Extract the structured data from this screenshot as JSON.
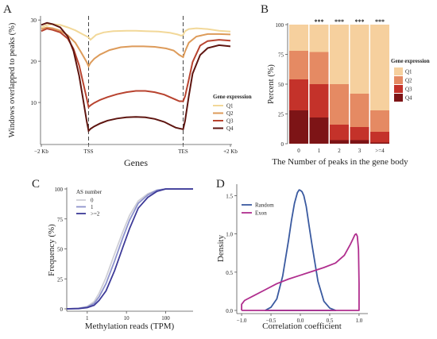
{
  "figure": {
    "panels": [
      {
        "letter": "A"
      },
      {
        "letter": "B"
      },
      {
        "letter": "C"
      },
      {
        "letter": "D"
      }
    ]
  },
  "chart_data": [
    {
      "panel": "A",
      "type": "line",
      "xlabel": "Genes",
      "ylabel": "Windows overlapped to peaks (%)",
      "x_tick_labels": [
        "−2 Kb",
        "TSS",
        "TES",
        "+2 Kb"
      ],
      "y_ticks": [
        10,
        20,
        30
      ],
      "ylim": [
        0,
        31
      ],
      "xlim": [
        0,
        100
      ],
      "dashed_lines_at": [
        25,
        75
      ],
      "legend_title": "Gene expression",
      "legend_position": "right",
      "series": [
        {
          "name": "Q1",
          "color": "#f2d899",
          "x": [
            0,
            3,
            6,
            10,
            14,
            18,
            22,
            25,
            26,
            27,
            29,
            33,
            38,
            45,
            50,
            55,
            62,
            68,
            72,
            74,
            75,
            76,
            78,
            82,
            88,
            94,
            100
          ],
          "y": [
            28.2,
            28.8,
            29.0,
            28.8,
            28.2,
            27.5,
            26.5,
            25.8,
            25.2,
            25.6,
            26.4,
            27.0,
            27.3,
            27.4,
            27.4,
            27.3,
            27.2,
            26.9,
            26.5,
            26.2,
            26.4,
            27.3,
            27.8,
            28.0,
            27.8,
            27.4,
            27.2
          ]
        },
        {
          "name": "Q2",
          "color": "#dd9b5a",
          "x": [
            0,
            3,
            6,
            10,
            14,
            18,
            21,
            24,
            25,
            26,
            28,
            31,
            36,
            42,
            48,
            54,
            60,
            66,
            70,
            73,
            75,
            76,
            78,
            82,
            88,
            94,
            100
          ],
          "y": [
            27.8,
            28.2,
            28.0,
            27.4,
            26.3,
            24.5,
            22.2,
            19.8,
            18.8,
            19.6,
            20.6,
            21.6,
            22.7,
            23.4,
            23.6,
            23.6,
            23.5,
            23.1,
            22.6,
            21.5,
            21.0,
            22.4,
            24.5,
            26.0,
            26.6,
            26.6,
            26.5
          ]
        },
        {
          "name": "Q3",
          "color": "#b8432f",
          "x": [
            0,
            3,
            6,
            10,
            14,
            17,
            20,
            22,
            24,
            25,
            26,
            28,
            31,
            35,
            40,
            45,
            50,
            55,
            60,
            65,
            68,
            71,
            73,
            75,
            76,
            78,
            80,
            84,
            88,
            94,
            100
          ],
          "y": [
            27.3,
            27.9,
            27.6,
            27.0,
            25.5,
            23.0,
            19.0,
            15.0,
            11.0,
            8.9,
            9.3,
            9.9,
            10.6,
            11.3,
            12.0,
            12.5,
            12.8,
            12.8,
            12.5,
            11.9,
            11.3,
            10.7,
            10.3,
            10.3,
            11.5,
            15.5,
            19.8,
            23.8,
            24.9,
            25.2,
            25.0
          ]
        },
        {
          "name": "Q4",
          "color": "#5e1510",
          "x": [
            0,
            3,
            6,
            10,
            14,
            17,
            20,
            22,
            24,
            25,
            26,
            28,
            31,
            35,
            40,
            45,
            50,
            55,
            60,
            65,
            68,
            71,
            73,
            75,
            76,
            78,
            80,
            84,
            88,
            94,
            100
          ],
          "y": [
            28.8,
            29.3,
            29.0,
            28.2,
            26.0,
            22.5,
            16.5,
            11.0,
            5.5,
            3.1,
            3.6,
            4.2,
            4.9,
            5.6,
            6.1,
            6.4,
            6.5,
            6.4,
            6.0,
            5.3,
            4.6,
            3.9,
            3.7,
            3.5,
            5.5,
            11.5,
            17.0,
            21.5,
            23.2,
            23.9,
            23.6
          ]
        }
      ]
    },
    {
      "panel": "B",
      "type": "bar",
      "stacked": true,
      "xlabel": "The Number of peaks in the gene body",
      "ylabel": "Percent (%)",
      "categories": [
        "0",
        "1",
        "2",
        "3",
        ">=4"
      ],
      "y_ticks": [
        0,
        25,
        50,
        75,
        100
      ],
      "ylim": [
        0,
        100
      ],
      "significance": [
        "",
        "***",
        "***",
        "***",
        "***"
      ],
      "legend_title": "Gene expression",
      "legend_position": "right",
      "series": [
        {
          "name": "Q4",
          "color": "#7d1416",
          "values": [
            28,
            22,
            3,
            3,
            1
          ]
        },
        {
          "name": "Q3",
          "color": "#c4322a",
          "values": [
            26,
            28,
            13,
            11,
            9
          ]
        },
        {
          "name": "Q2",
          "color": "#e58a63",
          "values": [
            24,
            27,
            34,
            28,
            18
          ]
        },
        {
          "name": "Q1",
          "color": "#f6d09e",
          "values": [
            22,
            23,
            50,
            58,
            72
          ]
        }
      ]
    },
    {
      "panel": "C",
      "type": "line",
      "xlabel": "Methylation reads (TPM)",
      "ylabel": "Frequency (%)",
      "x_scale": "log",
      "x_ticks": [
        1,
        10,
        100
      ],
      "x_tick_labels": [
        "1",
        "10",
        "100"
      ],
      "xlim": [
        0.3,
        500
      ],
      "y_ticks": [
        0,
        25,
        50,
        75,
        100
      ],
      "ylim": [
        0,
        100
      ],
      "legend_title": "AS number",
      "legend_position": "top-left",
      "series": [
        {
          "name": "0",
          "color": "#cfcfd6",
          "x": [
            0.3,
            0.6,
            1,
            1.5,
            2,
            3,
            5,
            8,
            12,
            20,
            35,
            60,
            100,
            200,
            500
          ],
          "y": [
            0,
            0.5,
            2,
            6,
            13,
            26,
            46,
            64,
            78,
            90,
            96,
            99,
            100,
            100,
            100
          ]
        },
        {
          "name": "1",
          "color": "#8d92cc",
          "x": [
            0.3,
            0.6,
            1,
            1.5,
            2,
            3,
            5,
            8,
            12,
            20,
            35,
            60,
            100,
            200,
            500
          ],
          "y": [
            0,
            0.3,
            1.5,
            4.5,
            10,
            21,
            40,
            59,
            74,
            88,
            95,
            99,
            100,
            100,
            100
          ]
        },
        {
          "name": ">=2",
          "color": "#3d3a98",
          "x": [
            0.3,
            0.6,
            1,
            1.5,
            2,
            3,
            5,
            8,
            12,
            20,
            35,
            60,
            100,
            200,
            500
          ],
          "y": [
            0,
            0.2,
            1,
            3,
            7,
            15,
            32,
            51,
            67,
            84,
            93,
            98,
            100,
            100,
            100
          ]
        }
      ]
    },
    {
      "panel": "D",
      "type": "line",
      "xlabel": "Correlation coefficient",
      "ylabel": "Density",
      "x_ticks": [
        -1.0,
        -0.5,
        0.0,
        0.5,
        1.0
      ],
      "x_tick_labels": [
        "−1.0",
        "−0.5",
        "0.0",
        "0.5",
        "1.0"
      ],
      "xlim": [
        -1.15,
        1.15
      ],
      "y_ticks": [
        0.0,
        0.5,
        1.0,
        1.5
      ],
      "y_tick_labels": [
        "0.0",
        "0.5",
        "1.0",
        "1.5"
      ],
      "ylim": [
        0,
        1.65
      ],
      "legend_position": "top-left",
      "series": [
        {
          "name": "Random",
          "color": "#3a5aa0",
          "x": [
            -0.6,
            -0.5,
            -0.4,
            -0.3,
            -0.2,
            -0.15,
            -0.1,
            -0.05,
            -0.02,
            0.0,
            0.03,
            0.06,
            0.1,
            0.15,
            0.2,
            0.3,
            0.4,
            0.5,
            0.6,
            0.6,
            -0.6
          ],
          "y": [
            0.0,
            0.04,
            0.15,
            0.45,
            0.92,
            1.18,
            1.4,
            1.54,
            1.575,
            1.57,
            1.55,
            1.5,
            1.36,
            1.1,
            0.85,
            0.38,
            0.12,
            0.03,
            0.0,
            0.0,
            0.0
          ]
        },
        {
          "name": "Exon",
          "color": "#b02e8e",
          "x": [
            -1.0,
            -1.0,
            -0.95,
            -0.9,
            -0.8,
            -0.6,
            -0.4,
            -0.2,
            0.0,
            0.2,
            0.4,
            0.6,
            0.75,
            0.85,
            0.9,
            0.93,
            0.95,
            0.97,
            0.99,
            1.0,
            1.0,
            -1.0
          ],
          "y": [
            0.0,
            0.08,
            0.13,
            0.15,
            0.19,
            0.27,
            0.35,
            0.41,
            0.46,
            0.51,
            0.56,
            0.62,
            0.72,
            0.86,
            0.94,
            0.99,
            1.0,
            0.97,
            0.8,
            0.35,
            0.0,
            0.0
          ]
        }
      ]
    }
  ]
}
